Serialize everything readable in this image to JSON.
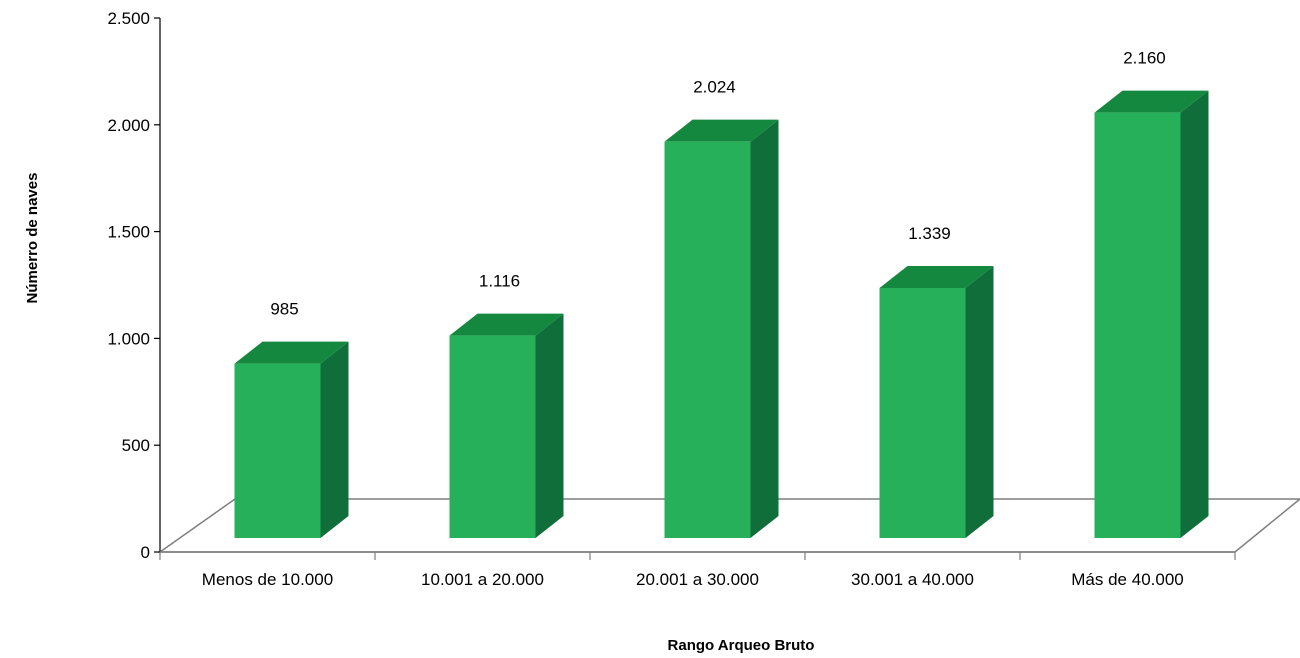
{
  "chart_data": {
    "type": "bar",
    "title": "",
    "xlabel": "Rango Arqueo Bruto",
    "ylabel": "Númerro de naves",
    "categories": [
      "Menos de 10.000",
      "10.001 a 20.000",
      "20.001 a 30.000",
      "30.001 a 40.000",
      "Más de 40.000"
    ],
    "values": [
      985,
      1116,
      2024,
      1339,
      2160
    ],
    "value_labels": [
      "985",
      "1.116",
      "2.024",
      "1.339",
      "2.160"
    ],
    "ylim": [
      0,
      2500
    ],
    "yticks": [
      0,
      500,
      1000,
      1500,
      2000,
      2500
    ],
    "ytick_labels": [
      "0",
      "500",
      "1.000",
      "1.500",
      "2.000",
      "2.500"
    ],
    "grid": false,
    "legend": "none",
    "style": "3d-column",
    "colors": {
      "bar_front": "#27b05a",
      "bar_top": "#14883f",
      "bar_side": "#0f6e3a",
      "axis": "#7f7f7f",
      "floor": "#7f7f7f"
    }
  }
}
